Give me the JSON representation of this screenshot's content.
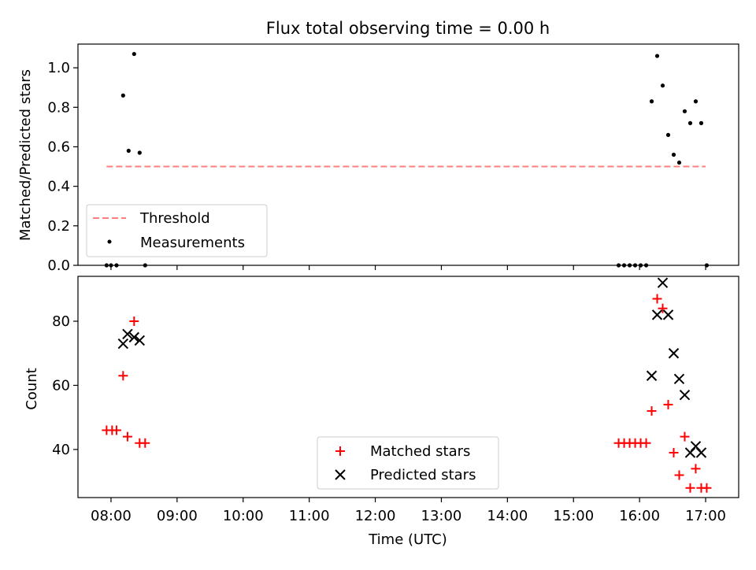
{
  "chart_data": [
    {
      "type": "scatter",
      "title": "Flux total observing time = 0.00 h",
      "ylabel": "Matched/Predicted stars",
      "xlabel": "",
      "ylim": [
        0,
        1.12
      ],
      "yticks": [
        "0.0",
        "0.2",
        "0.4",
        "0.6",
        "0.8",
        "1.0"
      ],
      "legend_position": "lower-left",
      "threshold": {
        "name": "Threshold",
        "value": 0.5,
        "x_range": [
          "07:56",
          "17:00"
        ],
        "color": "#ff7f7f",
        "style": "dashed"
      },
      "series": [
        {
          "name": "Measurements",
          "color": "#000000",
          "points": [
            [
              "07:56",
              0.0
            ],
            [
              "08:00",
              0.0
            ],
            [
              "08:05",
              0.0
            ],
            [
              "08:11",
              0.86
            ],
            [
              "08:16",
              0.58
            ],
            [
              "08:21",
              1.07
            ],
            [
              "08:26",
              0.57
            ],
            [
              "08:31",
              0.0
            ],
            [
              "15:41",
              0.0
            ],
            [
              "15:46",
              0.0
            ],
            [
              "15:51",
              0.0
            ],
            [
              "15:56",
              0.0
            ],
            [
              "16:01",
              0.0
            ],
            [
              "16:06",
              0.0
            ],
            [
              "16:11",
              0.83
            ],
            [
              "16:16",
              1.06
            ],
            [
              "16:21",
              0.91
            ],
            [
              "16:26",
              0.66
            ],
            [
              "16:31",
              0.56
            ],
            [
              "16:36",
              0.52
            ],
            [
              "16:41",
              0.78
            ],
            [
              "16:46",
              0.72
            ],
            [
              "16:51",
              0.83
            ],
            [
              "16:56",
              0.72
            ],
            [
              "17:01",
              0.0
            ]
          ]
        }
      ]
    },
    {
      "type": "scatter",
      "title": "",
      "xlabel": "Time (UTC)",
      "ylabel": "Count",
      "ylim": [
        25,
        94
      ],
      "yticks": [
        "40",
        "60",
        "80"
      ],
      "xticks": [
        "08:00",
        "09:00",
        "10:00",
        "11:00",
        "12:00",
        "13:00",
        "14:00",
        "15:00",
        "16:00",
        "17:00"
      ],
      "xlim": [
        "07:30",
        "17:30"
      ],
      "legend_position": "lower-center",
      "series": [
        {
          "name": "Matched stars",
          "marker": "plus",
          "color": "#ff0000",
          "points": [
            [
              "07:56",
              46
            ],
            [
              "08:01",
              46
            ],
            [
              "08:05",
              46
            ],
            [
              "08:11",
              63
            ],
            [
              "08:15",
              44
            ],
            [
              "08:21",
              80
            ],
            [
              "08:26",
              42
            ],
            [
              "08:31",
              42
            ],
            [
              "15:41",
              42
            ],
            [
              "15:46",
              42
            ],
            [
              "15:51",
              42
            ],
            [
              "15:56",
              42
            ],
            [
              "16:01",
              42
            ],
            [
              "16:06",
              42
            ],
            [
              "16:11",
              52
            ],
            [
              "16:16",
              87
            ],
            [
              "16:21",
              84
            ],
            [
              "16:26",
              54
            ],
            [
              "16:31",
              39
            ],
            [
              "16:36",
              32
            ],
            [
              "16:41",
              44
            ],
            [
              "16:46",
              28
            ],
            [
              "16:51",
              34
            ],
            [
              "16:56",
              28
            ],
            [
              "17:01",
              28
            ]
          ]
        },
        {
          "name": "Predicted stars",
          "marker": "x",
          "color": "#000000",
          "points": [
            [
              "08:11",
              73
            ],
            [
              "08:15",
              76
            ],
            [
              "08:21",
              75
            ],
            [
              "08:26",
              74
            ],
            [
              "16:11",
              63
            ],
            [
              "16:16",
              82
            ],
            [
              "16:21",
              92
            ],
            [
              "16:26",
              82
            ],
            [
              "16:31",
              70
            ],
            [
              "16:36",
              62
            ],
            [
              "16:41",
              57
            ],
            [
              "16:46",
              39
            ],
            [
              "16:51",
              41
            ],
            [
              "16:56",
              39
            ]
          ]
        }
      ]
    }
  ]
}
